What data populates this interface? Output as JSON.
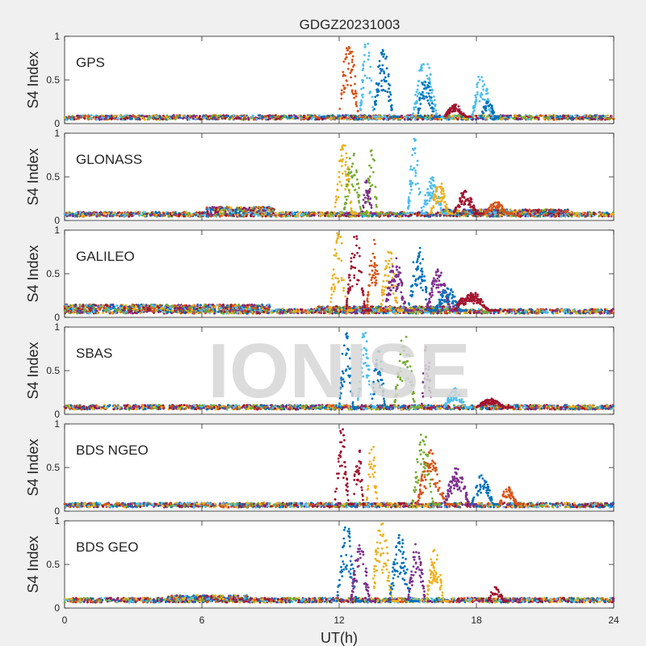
{
  "chart_data": {
    "type": "scatter",
    "title": "GDGZ20231003",
    "xlabel": "UT(h)",
    "ylabel": "S4 Index",
    "xlim": [
      0,
      24
    ],
    "ylim": [
      0,
      1
    ],
    "x_ticks": [
      "0",
      "6",
      "12",
      "18",
      "24"
    ],
    "y_ticks": [
      "0",
      "0.5",
      "1"
    ],
    "watermark": "IONISE",
    "colors": [
      "#0072bd",
      "#d95319",
      "#edb120",
      "#7e2f8e",
      "#77ac30",
      "#4dbeee",
      "#a2142f"
    ],
    "panels": [
      {
        "name": "GPS",
        "baseline": [
          {
            "x0": 0,
            "x1": 24,
            "y": 0.07
          }
        ],
        "bursts": [
          {
            "x0": 12.0,
            "x1": 13.1,
            "ymax": 1.0,
            "color": 1
          },
          {
            "x0": 12.9,
            "x1": 13.7,
            "ymax": 0.98,
            "color": 5
          },
          {
            "x0": 13.5,
            "x1": 14.6,
            "ymax": 0.9,
            "color": 0
          },
          {
            "x0": 15.2,
            "x1": 16.6,
            "ymax": 0.75,
            "color": 5
          },
          {
            "x0": 15.4,
            "x1": 16.4,
            "ymax": 0.55,
            "color": 0
          },
          {
            "x0": 16.6,
            "x1": 17.8,
            "ymax": 0.22,
            "color": 6
          },
          {
            "x0": 17.8,
            "x1": 18.9,
            "ymax": 0.6,
            "color": 5
          },
          {
            "x0": 18.2,
            "x1": 19.0,
            "ymax": 0.28,
            "color": 0
          }
        ]
      },
      {
        "name": "GLONASS",
        "baseline": [
          {
            "x0": 0,
            "x1": 24,
            "y": 0.07
          },
          {
            "x0": 6.2,
            "x1": 9.2,
            "y": 0.13
          },
          {
            "x0": 16.5,
            "x1": 22.0,
            "y": 0.1
          }
        ],
        "bursts": [
          {
            "x0": 11.8,
            "x1": 12.8,
            "ymax": 0.9,
            "color": 2
          },
          {
            "x0": 12.2,
            "x1": 13.2,
            "ymax": 0.8,
            "color": 4
          },
          {
            "x0": 13.2,
            "x1": 13.8,
            "ymax": 0.98,
            "color": 4
          },
          {
            "x0": 13.0,
            "x1": 13.6,
            "ymax": 0.5,
            "color": 3
          },
          {
            "x0": 15.0,
            "x1": 15.8,
            "ymax": 0.98,
            "color": 5
          },
          {
            "x0": 15.6,
            "x1": 16.8,
            "ymax": 0.5,
            "color": 5
          },
          {
            "x0": 16.0,
            "x1": 17.0,
            "ymax": 0.45,
            "color": 2
          },
          {
            "x0": 17.0,
            "x1": 18.3,
            "ymax": 0.35,
            "color": 6
          },
          {
            "x0": 18.4,
            "x1": 19.6,
            "ymax": 0.22,
            "color": 1
          }
        ]
      },
      {
        "name": "GALILEO",
        "baseline": [
          {
            "x0": 0,
            "x1": 24,
            "y": 0.07
          },
          {
            "x0": 0.0,
            "x1": 9.0,
            "y": 0.12
          },
          {
            "x0": 11.0,
            "x1": 17.0,
            "y": 0.1
          }
        ],
        "bursts": [
          {
            "x0": 11.6,
            "x1": 12.6,
            "ymax": 1.0,
            "color": 2
          },
          {
            "x0": 12.3,
            "x1": 13.4,
            "ymax": 0.95,
            "color": 6
          },
          {
            "x0": 13.2,
            "x1": 14.0,
            "ymax": 0.9,
            "color": 1
          },
          {
            "x0": 13.8,
            "x1": 14.8,
            "ymax": 0.8,
            "color": 2
          },
          {
            "x0": 14.0,
            "x1": 15.2,
            "ymax": 0.7,
            "color": 3
          },
          {
            "x0": 15.0,
            "x1": 16.2,
            "ymax": 0.85,
            "color": 0
          },
          {
            "x0": 15.8,
            "x1": 17.2,
            "ymax": 0.55,
            "color": 3
          },
          {
            "x0": 16.2,
            "x1": 17.6,
            "ymax": 0.35,
            "color": 0
          },
          {
            "x0": 17.0,
            "x1": 19.0,
            "ymax": 0.3,
            "color": 6
          }
        ]
      },
      {
        "name": "SBAS",
        "baseline": [
          {
            "x0": 0,
            "x1": 24,
            "y": 0.08
          }
        ],
        "bursts": [
          {
            "x0": 12.0,
            "x1": 12.8,
            "ymax": 1.0,
            "color": 0
          },
          {
            "x0": 12.8,
            "x1": 13.6,
            "ymax": 0.98,
            "color": 5
          },
          {
            "x0": 13.4,
            "x1": 14.2,
            "ymax": 0.75,
            "color": 0
          },
          {
            "x0": 14.4,
            "x1": 15.6,
            "ymax": 0.95,
            "color": 4
          },
          {
            "x0": 15.6,
            "x1": 16.2,
            "ymax": 0.85,
            "color": 3
          },
          {
            "x0": 16.6,
            "x1": 17.8,
            "ymax": 0.3,
            "color": 5
          },
          {
            "x0": 18.0,
            "x1": 19.6,
            "ymax": 0.18,
            "color": 6
          }
        ]
      },
      {
        "name": "BDS NGEO",
        "baseline": [
          {
            "x0": 0,
            "x1": 24,
            "y": 0.07
          }
        ],
        "bursts": [
          {
            "x0": 11.8,
            "x1": 12.6,
            "ymax": 1.0,
            "color": 6
          },
          {
            "x0": 12.6,
            "x1": 13.2,
            "ymax": 0.8,
            "color": 6
          },
          {
            "x0": 13.2,
            "x1": 13.8,
            "ymax": 0.85,
            "color": 2
          },
          {
            "x0": 15.2,
            "x1": 16.4,
            "ymax": 0.98,
            "color": 4
          },
          {
            "x0": 15.4,
            "x1": 17.0,
            "ymax": 0.7,
            "color": 1
          },
          {
            "x0": 16.6,
            "x1": 18.0,
            "ymax": 0.5,
            "color": 3
          },
          {
            "x0": 17.8,
            "x1": 19.0,
            "ymax": 0.45,
            "color": 0
          },
          {
            "x0": 19.0,
            "x1": 20.0,
            "ymax": 0.28,
            "color": 1
          }
        ]
      },
      {
        "name": "BDS GEO",
        "baseline": [
          {
            "x0": 0,
            "x1": 24,
            "y": 0.09
          },
          {
            "x0": 4.5,
            "x1": 8.0,
            "y": 0.12
          }
        ],
        "bursts": [
          {
            "x0": 11.9,
            "x1": 13.0,
            "ymax": 1.0,
            "color": 0
          },
          {
            "x0": 12.5,
            "x1": 13.6,
            "ymax": 0.75,
            "color": 3
          },
          {
            "x0": 13.4,
            "x1": 14.6,
            "ymax": 1.0,
            "color": 2
          },
          {
            "x0": 14.2,
            "x1": 15.4,
            "ymax": 0.85,
            "color": 0
          },
          {
            "x0": 15.0,
            "x1": 16.0,
            "ymax": 0.75,
            "color": 3
          },
          {
            "x0": 15.8,
            "x1": 16.8,
            "ymax": 0.7,
            "color": 2
          },
          {
            "x0": 18.5,
            "x1": 19.4,
            "ymax": 0.25,
            "color": 6
          }
        ]
      }
    ]
  }
}
